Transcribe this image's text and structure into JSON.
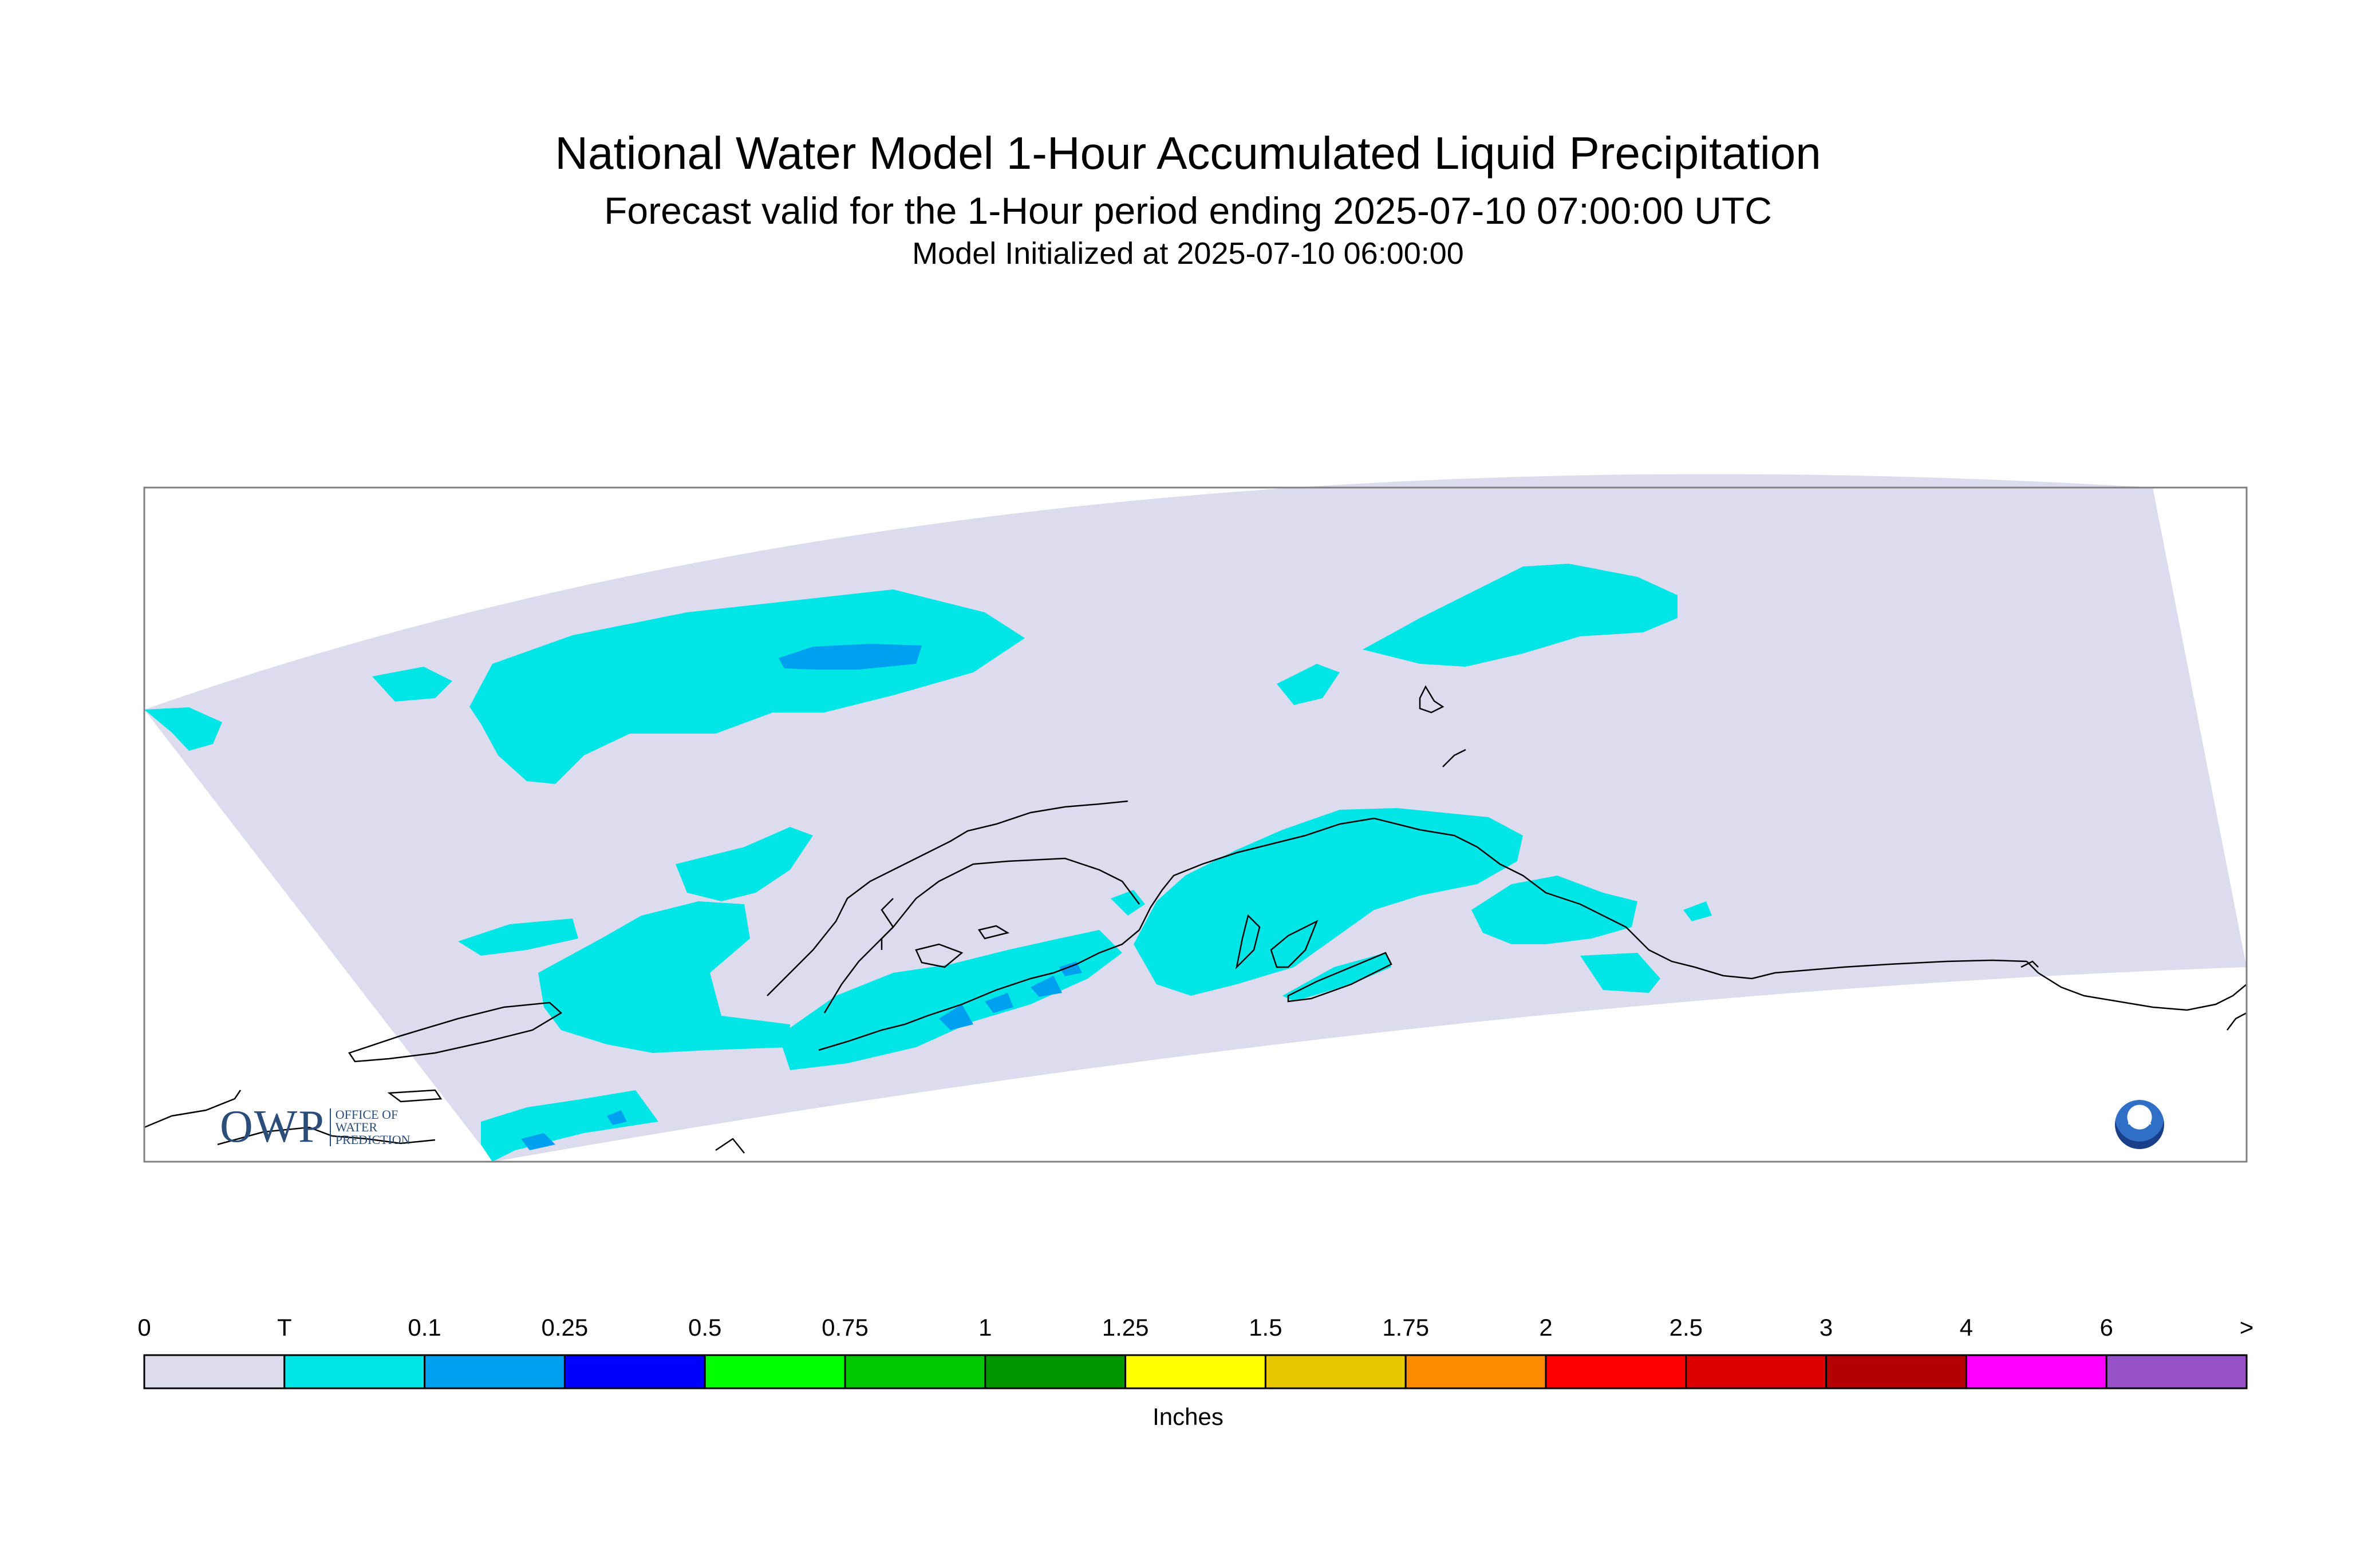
{
  "header": {
    "title": "National Water Model 1-Hour Accumulated Liquid Precipitation",
    "subtitle": "Forecast valid for the 1-Hour period ending 2025-07-10 07:00:00 UTC",
    "init": "Model Initialized at 2025-07-10 06:00:00"
  },
  "legend": {
    "unit": "Inches",
    "labels": [
      "0",
      "T",
      "0.1",
      "0.25",
      "0.5",
      "0.75",
      "1",
      "1.25",
      "1.5",
      "1.75",
      "2",
      "2.5",
      "3",
      "4",
      "6",
      ">"
    ],
    "colors": [
      "#dcdcee",
      "#00e6e6",
      "#00a0f0",
      "#0000ff",
      "#00ff00",
      "#00c800",
      "#009600",
      "#ffff00",
      "#e6c800",
      "#ff8c00",
      "#ff0000",
      "#dc0000",
      "#b40000",
      "#ff00ff",
      "#9650c8"
    ]
  },
  "logos": {
    "owp_mark": "OWP",
    "owp_text": [
      "OFFICE OF",
      "WATER",
      "PREDICTION"
    ],
    "noaa": "NOAA"
  },
  "map_colors": {
    "domain": "#dcdcee",
    "trace": "#00e6e6",
    "light": "#00a0f0",
    "coast": "#000000",
    "frame": "#808080"
  }
}
